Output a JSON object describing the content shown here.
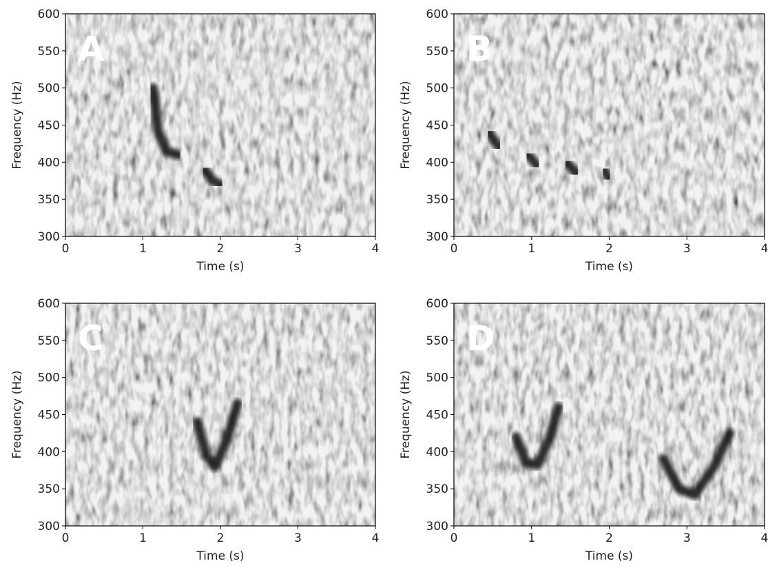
{
  "chart_data": [
    {
      "type": "spectrogram",
      "panel_label": "A",
      "xlabel": "Time (s)",
      "ylabel": "Frequency (Hz)",
      "xlim": [
        0,
        4
      ],
      "ylim": [
        300,
        600
      ],
      "xticks": [
        0,
        1,
        2,
        3,
        4
      ],
      "yticks": [
        300,
        350,
        400,
        450,
        500,
        550,
        600
      ],
      "traces": [
        {
          "x": [
            1.13,
            1.2,
            1.3,
            1.45
          ],
          "values": [
            500,
            440,
            415,
            410
          ]
        },
        {
          "x": [
            1.8,
            1.9,
            2.0
          ],
          "values": [
            390,
            375,
            370
          ]
        }
      ]
    },
    {
      "type": "spectrogram",
      "panel_label": "B",
      "xlabel": "Time (s)",
      "ylabel": "Frequency (Hz)",
      "xlim": [
        0,
        4
      ],
      "ylim": [
        300,
        600
      ],
      "xticks": [
        0,
        1,
        2,
        3,
        4
      ],
      "yticks": [
        300,
        350,
        400,
        450,
        500,
        550,
        600
      ],
      "traces": [
        {
          "x": [
            0.45,
            0.58
          ],
          "values": [
            440,
            420
          ]
        },
        {
          "x": [
            0.95,
            1.08
          ],
          "values": [
            410,
            395
          ]
        },
        {
          "x": [
            1.45,
            1.58
          ],
          "values": [
            400,
            385
          ]
        },
        {
          "x": [
            1.93,
            2.0
          ],
          "values": [
            390,
            378
          ]
        }
      ]
    },
    {
      "type": "spectrogram",
      "panel_label": "C",
      "xlabel": "Time (s)",
      "ylabel": "Frequency (Hz)",
      "xlim": [
        0,
        4
      ],
      "ylim": [
        300,
        600
      ],
      "xticks": [
        0,
        1,
        2,
        3,
        4
      ],
      "yticks": [
        300,
        350,
        400,
        450,
        500,
        550,
        600
      ],
      "traces": [
        {
          "x": [
            1.7,
            1.82,
            1.93,
            2.08,
            2.22
          ],
          "values": [
            440,
            395,
            380,
            415,
            465
          ]
        }
      ]
    },
    {
      "type": "spectrogram",
      "panel_label": "D",
      "xlabel": "Time (s)",
      "ylabel": "Frequency (Hz)",
      "xlim": [
        0,
        4
      ],
      "ylim": [
        300,
        600
      ],
      "xticks": [
        0,
        1,
        2,
        3,
        4
      ],
      "yticks": [
        300,
        350,
        400,
        450,
        500,
        550,
        600
      ],
      "traces": [
        {
          "x": [
            0.8,
            0.93,
            1.08,
            1.22,
            1.35
          ],
          "values": [
            420,
            385,
            382,
            415,
            460
          ]
        },
        {
          "x": [
            2.7,
            2.9,
            3.1,
            3.35,
            3.55
          ],
          "values": [
            390,
            350,
            342,
            380,
            425
          ]
        }
      ]
    }
  ]
}
